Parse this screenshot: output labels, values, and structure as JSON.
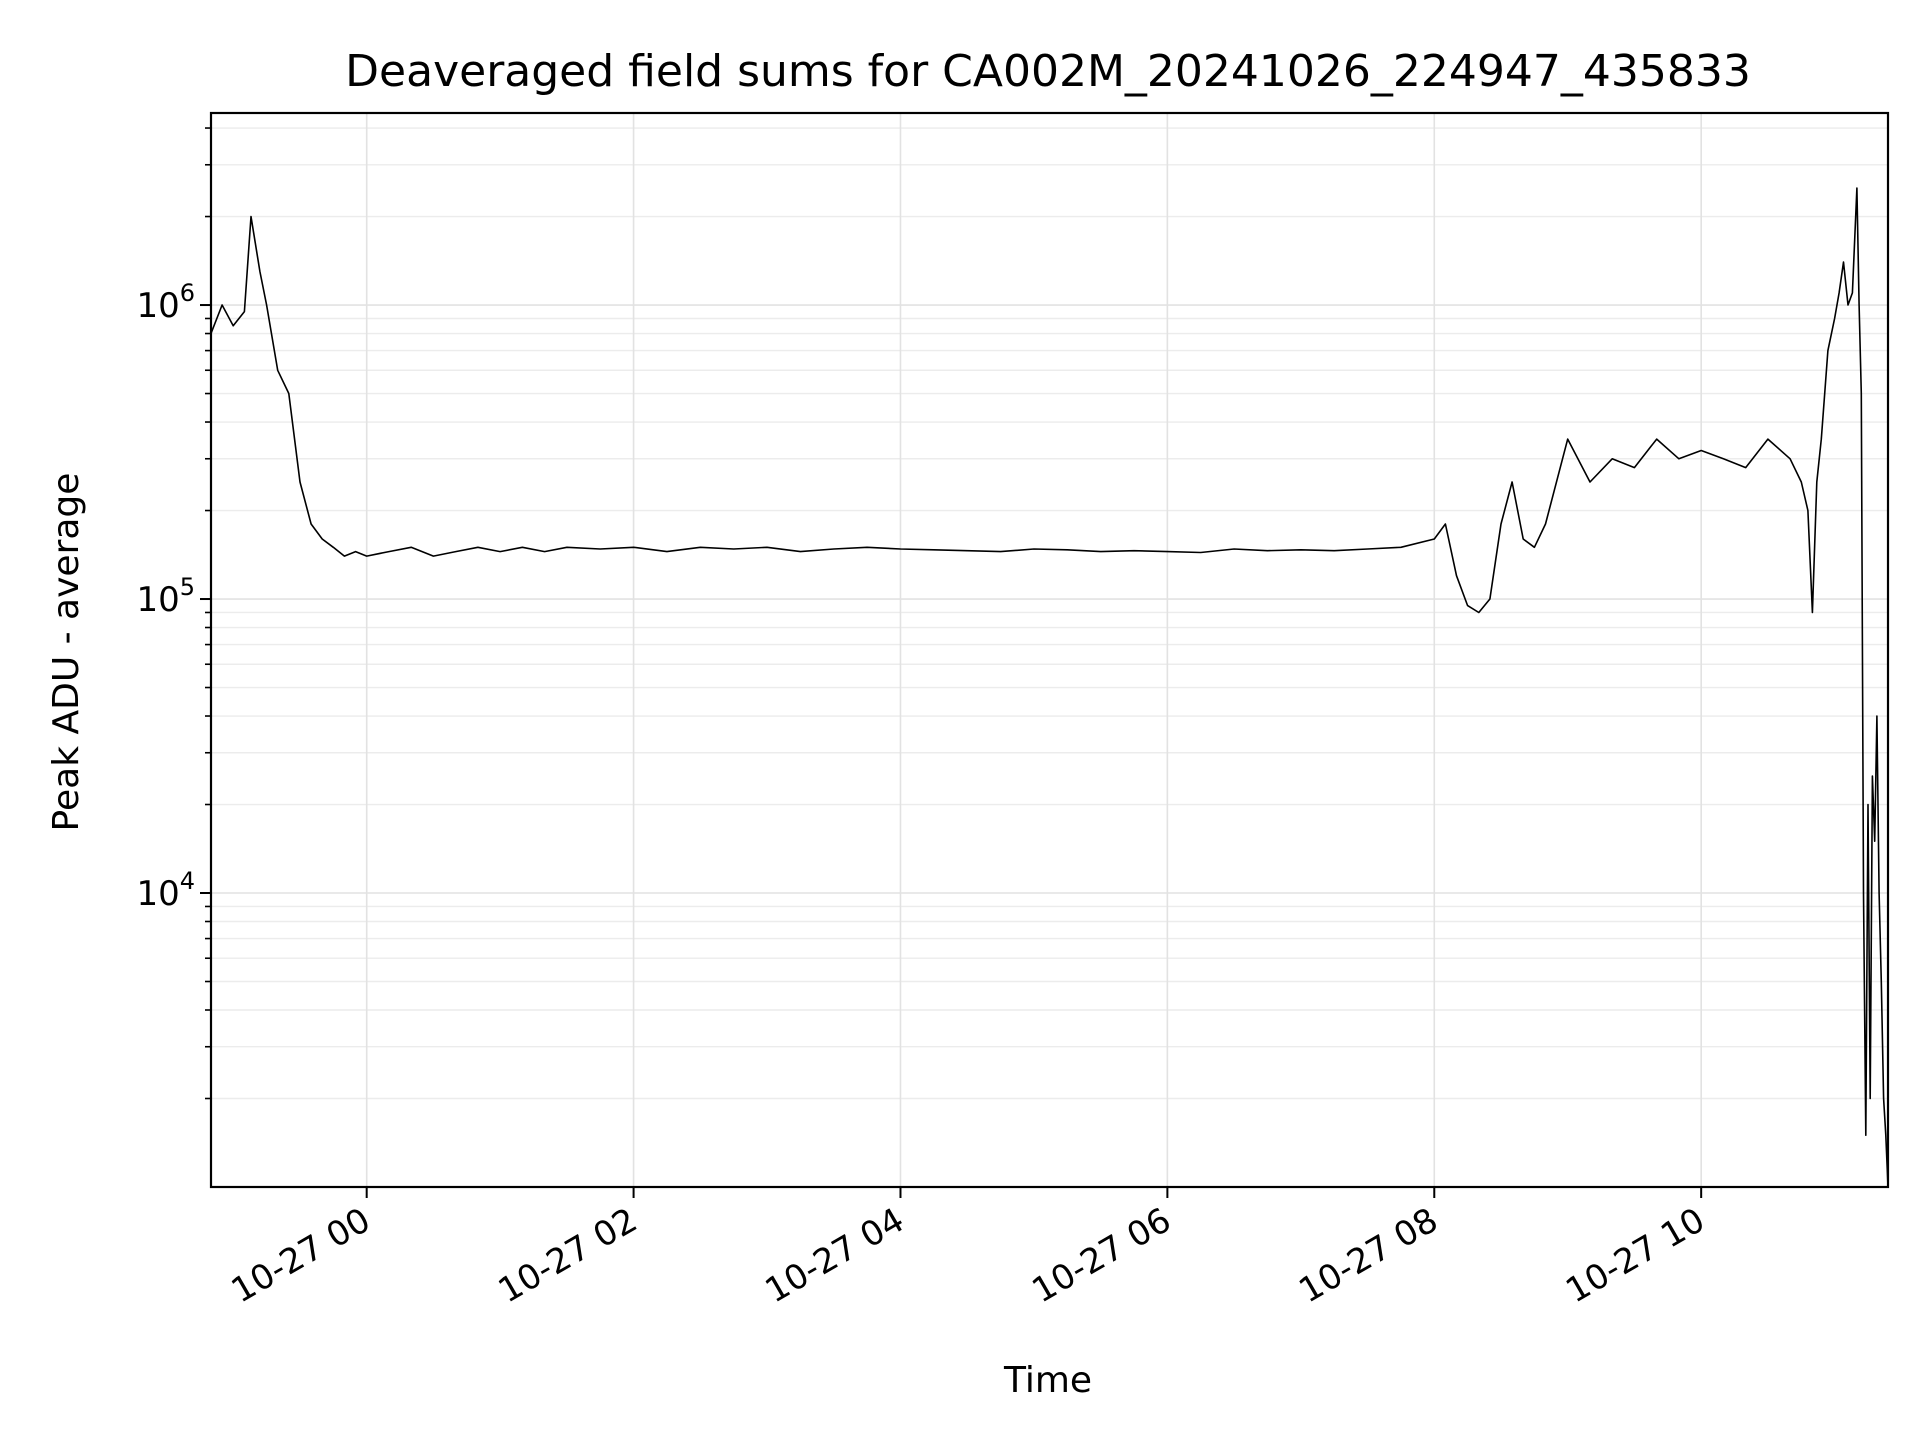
{
  "chart_data": {
    "type": "line",
    "title": "Deaveraged field sums for CA002M_20241026_224947_435833",
    "xlabel": "Time",
    "ylabel": "Peak ADU - average",
    "y_scale": "log",
    "ylim": [
      1000,
      4500000
    ],
    "xlim": [
      "2024-10-26 22:50",
      "2024-10-27 11:24"
    ],
    "x_ticks": [
      "2024-10-27 00:00",
      "2024-10-27 02:00",
      "2024-10-27 04:00",
      "2024-10-27 06:00",
      "2024-10-27 08:00",
      "2024-10-27 10:00"
    ],
    "x_tick_labels": [
      "10-27 00",
      "10-27 02",
      "10-27 04",
      "10-27 06",
      "10-27 08",
      "10-27 10"
    ],
    "y_ticks": [
      10000,
      100000,
      1000000
    ],
    "y_tick_labels": [
      {
        "base": "10",
        "exp": "4"
      },
      {
        "base": "10",
        "exp": "5"
      },
      {
        "base": "10",
        "exp": "6"
      }
    ],
    "grid": true,
    "line_color": "#000000",
    "series": [
      {
        "x": [
          "2024-10-26 22:50",
          "2024-10-26 22:55",
          "2024-10-26 23:00",
          "2024-10-26 23:05",
          "2024-10-26 23:08",
          "2024-10-26 23:12",
          "2024-10-26 23:15",
          "2024-10-26 23:20",
          "2024-10-26 23:25",
          "2024-10-26 23:30",
          "2024-10-26 23:35",
          "2024-10-26 23:40",
          "2024-10-26 23:45",
          "2024-10-26 23:50",
          "2024-10-26 23:55",
          "2024-10-27 00:00",
          "2024-10-27 00:10",
          "2024-10-27 00:20",
          "2024-10-27 00:30",
          "2024-10-27 00:40",
          "2024-10-27 00:50",
          "2024-10-27 01:00",
          "2024-10-27 01:10",
          "2024-10-27 01:20",
          "2024-10-27 01:30",
          "2024-10-27 01:45",
          "2024-10-27 02:00",
          "2024-10-27 02:15",
          "2024-10-27 02:30",
          "2024-10-27 02:45",
          "2024-10-27 03:00",
          "2024-10-27 03:15",
          "2024-10-27 03:30",
          "2024-10-27 03:45",
          "2024-10-27 04:00",
          "2024-10-27 04:15",
          "2024-10-27 04:30",
          "2024-10-27 04:45",
          "2024-10-27 05:00",
          "2024-10-27 05:15",
          "2024-10-27 05:30",
          "2024-10-27 05:45",
          "2024-10-27 06:00",
          "2024-10-27 06:15",
          "2024-10-27 06:30",
          "2024-10-27 06:45",
          "2024-10-27 07:00",
          "2024-10-27 07:15",
          "2024-10-27 07:30",
          "2024-10-27 07:45",
          "2024-10-27 08:00",
          "2024-10-27 08:05",
          "2024-10-27 08:10",
          "2024-10-27 08:15",
          "2024-10-27 08:20",
          "2024-10-27 08:25",
          "2024-10-27 08:30",
          "2024-10-27 08:35",
          "2024-10-27 08:40",
          "2024-10-27 08:45",
          "2024-10-27 08:50",
          "2024-10-27 09:00",
          "2024-10-27 09:10",
          "2024-10-27 09:20",
          "2024-10-27 09:30",
          "2024-10-27 09:40",
          "2024-10-27 09:50",
          "2024-10-27 10:00",
          "2024-10-27 10:10",
          "2024-10-27 10:20",
          "2024-10-27 10:30",
          "2024-10-27 10:40",
          "2024-10-27 10:45",
          "2024-10-27 10:48",
          "2024-10-27 10:50",
          "2024-10-27 10:52",
          "2024-10-27 10:54",
          "2024-10-27 10:57",
          "2024-10-27 11:00",
          "2024-10-27 11:02",
          "2024-10-27 11:04",
          "2024-10-27 11:06",
          "2024-10-27 11:08",
          "2024-10-27 11:10",
          "2024-10-27 11:11",
          "2024-10-27 11:12",
          "2024-10-27 11:13",
          "2024-10-27 11:14",
          "2024-10-27 11:15",
          "2024-10-27 11:16",
          "2024-10-27 11:17",
          "2024-10-27 11:18",
          "2024-10-27 11:19",
          "2024-10-27 11:20",
          "2024-10-27 11:21",
          "2024-10-27 11:22",
          "2024-10-27 11:23",
          "2024-10-27 11:24"
        ],
        "y": [
          800000,
          1000000,
          850000,
          950000,
          2000000,
          1300000,
          1000000,
          600000,
          500000,
          250000,
          180000,
          160000,
          150000,
          140000,
          145000,
          140000,
          145000,
          150000,
          140000,
          145000,
          150000,
          145000,
          150000,
          145000,
          150000,
          148000,
          150000,
          145000,
          150000,
          148000,
          150000,
          145000,
          148000,
          150000,
          148000,
          147000,
          146000,
          145000,
          148000,
          147000,
          145000,
          146000,
          145000,
          144000,
          148000,
          146000,
          147000,
          146000,
          148000,
          150000,
          160000,
          180000,
          120000,
          95000,
          90000,
          100000,
          180000,
          250000,
          160000,
          150000,
          180000,
          350000,
          250000,
          300000,
          280000,
          350000,
          300000,
          320000,
          300000,
          280000,
          350000,
          300000,
          250000,
          200000,
          90000,
          250000,
          350000,
          700000,
          900000,
          1100000,
          1400000,
          1000000,
          1100000,
          2500000,
          1000000,
          500000,
          10000,
          1500,
          20000,
          2000,
          25000,
          15000,
          40000,
          10000,
          5000,
          2000,
          1500,
          1000
        ]
      }
    ]
  }
}
